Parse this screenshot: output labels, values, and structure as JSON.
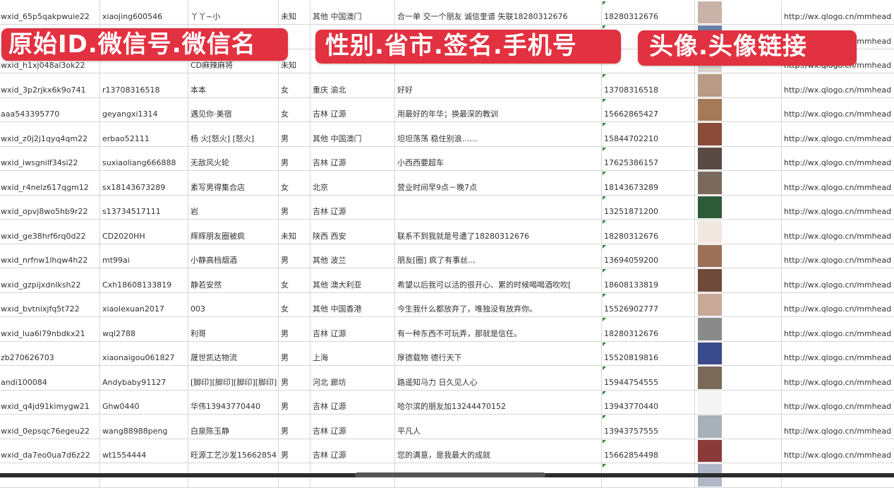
{
  "overlays": {
    "left": "原始ID.微信号.微信名",
    "middle": "性别.省市.签名.手机号",
    "right": "头像.头像链接"
  },
  "rows": [
    {
      "id": "wxid_65p5qakpwuie22",
      "wechat": "xiaojing600546",
      "name": "丫丫~小",
      "gender": "未知",
      "region": "其他 中国澳门",
      "signature": "合一单 交一个朋友 诚信奎谱 失联18280312676",
      "phone": "18280312676",
      "avatar_color": "#c9b3a8",
      "link": "http://wx.qlogo.cn/mmhead"
    },
    {
      "id": "",
      "wechat": "",
      "name": "",
      "gender": "",
      "region": "",
      "signature": "",
      "phone": "",
      "avatar_color": "#6a7fa8",
      "link": "http://wx.qlogo.cn/mmhead"
    },
    {
      "id": "wxid_h1xj048al3ok22",
      "wechat": "",
      "name": "CD麻辣麻将",
      "gender": "未知",
      "region": "",
      "signature": "",
      "phone": "",
      "avatar_color": "#d8d4d0",
      "link": "http://wx.qlogo.cn/mmhead"
    },
    {
      "id": "wxid_3p2rjkx6k9o741",
      "wechat": "r13708316518",
      "name": "本本",
      "gender": "女",
      "region": "重庆 渝北",
      "signature": "好好",
      "phone": "13708316518",
      "avatar_color": "#b89a86",
      "link": "http://wx.qlogo.cn/mmhead"
    },
    {
      "id": "aaa543395770",
      "wechat": "geyangxi1314",
      "name": "遇见你·美宿",
      "gender": "女",
      "region": "吉林 辽源",
      "signature": "用最好的年华；换最深的教训",
      "phone": "15662865427",
      "avatar_color": "#a57a58",
      "link": "http://wx.qlogo.cn/mmhead"
    },
    {
      "id": "wxid_z0j2j1qyq4qm22",
      "wechat": "erbao52111",
      "name": "杨 火[怒火] [怒火]",
      "gender": "男",
      "region": "其他 中国澳门",
      "signature": "坦坦荡荡 稳住别浪……",
      "phone": "15844702210",
      "avatar_color": "#8a4b3a",
      "link": "http://wx.qlogo.cn/mmhead"
    },
    {
      "id": "wxid_iwsgnilf34si22",
      "wechat": "suxiaoliang666888",
      "name": "无敌风火轮",
      "gender": "男",
      "region": "吉林 辽源",
      "signature": "小西西要超车",
      "phone": "17625386157",
      "avatar_color": "#5a4a44",
      "link": "http://wx.qlogo.cn/mmhead"
    },
    {
      "id": "wxid_r4nelz617qgm12",
      "wechat": "sx18143673289",
      "name": "素写男得集合店",
      "gender": "女",
      "region": "北京",
      "signature": "营业时间早9点－晚7点",
      "phone": "18143673289",
      "avatar_color": "#7a6a5e",
      "link": "http://wx.qlogo.cn/mmhead"
    },
    {
      "id": "wxid_opvj8wo5hb9r22",
      "wechat": "s13734517111",
      "name": "岩",
      "gender": "男",
      "region": "吉林 辽源",
      "signature": "",
      "phone": "13251871200",
      "avatar_color": "#2f5a3a",
      "link": "http://wx.qlogo.cn/mmhead"
    },
    {
      "id": "wxid_ge38hrf6rq0d22",
      "wechat": "CD2020HH",
      "name": "辉辉朋友圈被疯",
      "gender": "未知",
      "region": "陕西 西安",
      "signature": "联系不到我就是号遭了18280312676",
      "phone": "18280312676",
      "avatar_color": "#f2e6e0",
      "link": "http://wx.qlogo.cn/mmhead"
    },
    {
      "id": "wxid_nrfnw1lhqw4h22",
      "wechat": "mt99ai",
      "name": "小静高档烟酒",
      "gender": "男",
      "region": "其他 波兰",
      "signature": "朋友[圈] 疯了有事丝..,",
      "phone": "13694059200",
      "avatar_color": "#9a7058",
      "link": "http://wx.qlogo.cn/mmhead"
    },
    {
      "id": "wxid_gzpijxdnlksh22",
      "wechat": "Cxh18608133819",
      "name": "静若安然",
      "gender": "女",
      "region": "其他 澳大利亚",
      "signature": "希望以后我可以活的很开心、累的时候喝喝酒吹吹[",
      "phone": "18608133819",
      "avatar_color": "#6e4a3c",
      "link": "http://wx.qlogo.cn/mmhead"
    },
    {
      "id": "wxid_bvtnixjfq5t722",
      "wechat": "xiaolexuan2017",
      "name": "003",
      "gender": "女",
      "region": "其他 中国香港",
      "signature": "今生我什么都放弃了，唯独没有放弃你。",
      "phone": "15526902777",
      "avatar_color": "#c8a898",
      "link": "http://wx.qlogo.cn/mmhead"
    },
    {
      "id": "wxid_lua6l79nbdkx21",
      "wechat": "wql2788",
      "name": "利哥",
      "gender": "男",
      "region": "吉林 辽源",
      "signature": "有一种东西不可玩弄，那就是信任。",
      "phone": "18280312676",
      "avatar_color": "#8a8a8a",
      "link": "http://wx.qlogo.cn/mmhead"
    },
    {
      "id": "zb270626703",
      "wechat": "xiaonaigou061827",
      "name": "晟世凯达物流",
      "gender": "男",
      "region": "上海",
      "signature": "厚德载物 德行天下",
      "phone": "15520819816",
      "avatar_color": "#3a4a8a",
      "link": "http://wx.qlogo.cn/mmhead"
    },
    {
      "id": "andi100084",
      "wechat": "Andybaby91127",
      "name": "[脚印][脚印][脚印][脚印]",
      "gender": "男",
      "region": "河北 廊坊",
      "signature": "路遥知马力 日久见人心",
      "phone": "15944754555",
      "avatar_color": "#7a6a5a",
      "link": "http://wx.qlogo.cn/mmhead"
    },
    {
      "id": "wxid_q4jd91kimygw21",
      "wechat": "Ghw0440",
      "name": "华伟13943770440",
      "gender": "男",
      "region": "吉林 辽源",
      "signature": "哈尔滨的朋友加13244470152",
      "phone": "13943770440",
      "avatar_color": "#f4f4f4",
      "link": "http://wx.qlogo.cn/mmhead"
    },
    {
      "id": "wxid_0epsqc76egeu22",
      "wechat": "wang88988peng",
      "name": "白泉陈玉静",
      "gender": "男",
      "region": "吉林 辽源",
      "signature": "平凡人",
      "phone": "13943757555",
      "avatar_color": "#a8b0b8",
      "link": "http://wx.qlogo.cn/mmhead"
    },
    {
      "id": "wxid_da7eo0ua7d6z22",
      "wechat": "wt1554444",
      "name": "旺源工艺沙发15662854",
      "gender": "男",
      "region": "吉林 辽源",
      "signature": "您的满意，是我最大的成就",
      "phone": "15662854498",
      "avatar_color": "#8a3a3a",
      "link": "http://wx.qlogo.cn/mmhead"
    },
    {
      "id": "",
      "wechat": "",
      "name": "",
      "gender": "",
      "region": "",
      "signature": "",
      "phone": "",
      "avatar_color": "#b0b8c8",
      "link": ""
    }
  ]
}
